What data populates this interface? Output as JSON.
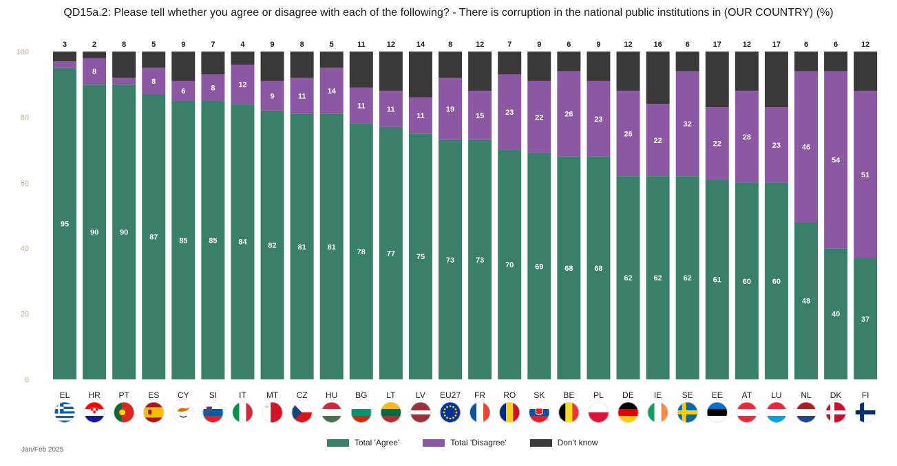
{
  "title": "QD15a.2: Please tell whether you agree or disagree with each of the following? - There is corruption in the national public institutions in (OUR COUNTRY) (%)",
  "source_note": "Jan/Feb 2025",
  "colors": {
    "agree": "#3a7f6a",
    "disagree": "#8c57a3",
    "dontknow": "#3b3839"
  },
  "legend": [
    {
      "label": "Total 'Agree'",
      "color": "#3a7f6a"
    },
    {
      "label": "Total 'Disagree'",
      "color": "#8c57a3"
    },
    {
      "label": "Don't know",
      "color": "#3b3839"
    }
  ],
  "chart_data": {
    "type": "bar",
    "stacked": true,
    "title": "QD15a.2: Please tell whether you agree or disagree with each of the following? - There is corruption in the national public institutions in (OUR COUNTRY) (%)",
    "ylim": [
      0,
      100
    ],
    "yticks": [
      0,
      20,
      40,
      60,
      80,
      100
    ],
    "grid": false,
    "legend_position": "bottom-center",
    "categories": [
      "EL",
      "HR",
      "PT",
      "ES",
      "CY",
      "SI",
      "IT",
      "MT",
      "CZ",
      "HU",
      "BG",
      "LT",
      "LV",
      "EU27",
      "FR",
      "RO",
      "SK",
      "BE",
      "PL",
      "DE",
      "IE",
      "SE",
      "EE",
      "AT",
      "LU",
      "NL",
      "DK",
      "FI"
    ],
    "series": [
      {
        "name": "Total 'Agree'",
        "values": [
          95,
          90,
          90,
          87,
          85,
          85,
          84,
          82,
          81,
          81,
          78,
          77,
          75,
          73,
          73,
          70,
          69,
          68,
          68,
          62,
          62,
          62,
          61,
          60,
          60,
          48,
          40,
          37
        ]
      },
      {
        "name": "Total 'Disagree'",
        "values": [
          2,
          8,
          2,
          8,
          6,
          8,
          12,
          9,
          11,
          14,
          11,
          11,
          11,
          19,
          15,
          23,
          22,
          26,
          23,
          26,
          22,
          32,
          22,
          28,
          23,
          46,
          54,
          51
        ]
      },
      {
        "name": "Don't know",
        "values": [
          3,
          2,
          8,
          5,
          9,
          7,
          4,
          9,
          8,
          5,
          11,
          12,
          14,
          8,
          12,
          7,
          9,
          6,
          9,
          12,
          16,
          6,
          17,
          12,
          17,
          6,
          6,
          12
        ]
      }
    ],
    "data_labels": {
      "agree": [
        "95",
        "90",
        "90",
        "87",
        "85",
        "85",
        "84",
        "82",
        "81",
        "81",
        "78",
        "77",
        "75",
        "73",
        "73",
        "70",
        "69",
        "68",
        "68",
        "62",
        "62",
        "62",
        "61",
        "60",
        "60",
        "48",
        "40",
        "37"
      ],
      "disagree": [
        "",
        "8",
        "",
        "8",
        "6",
        "8",
        "12",
        "9",
        "11",
        "14",
        "11",
        "11",
        "11",
        "19",
        "15",
        "23",
        "22",
        "26",
        "23",
        "26",
        "22",
        "32",
        "22",
        "28",
        "23",
        "46",
        "54",
        "51"
      ],
      "dontknow": [
        "3",
        "2",
        "8",
        "5",
        "9",
        "7",
        "4",
        "9",
        "8",
        "5",
        "11",
        "12",
        "14",
        "8",
        "12",
        "7",
        "9",
        "6",
        "9",
        "12",
        "16",
        "6",
        "17",
        "12",
        "17",
        "6",
        "6",
        "12"
      ]
    },
    "flags": [
      {
        "name": "greece-flag",
        "type": "greece"
      },
      {
        "name": "croatia-flag",
        "type": "h3",
        "c": [
          "#ff0000",
          "#ffffff",
          "#171796"
        ]
      },
      {
        "name": "portugal-flag",
        "type": "v2",
        "c": [
          "#046a38",
          "#da291c"
        ]
      },
      {
        "name": "spain-flag",
        "type": "spain"
      },
      {
        "name": "cyprus-flag",
        "type": "cyprus"
      },
      {
        "name": "slovenia-flag",
        "type": "h3",
        "c": [
          "#ffffff",
          "#005da4",
          "#ed1c24"
        ]
      },
      {
        "name": "italy-flag",
        "type": "v3",
        "c": [
          "#009246",
          "#ffffff",
          "#ce2b37"
        ]
      },
      {
        "name": "malta-flag",
        "type": "v2",
        "c": [
          "#ffffff",
          "#cf142b"
        ]
      },
      {
        "name": "czechia-flag",
        "type": "czech"
      },
      {
        "name": "hungary-flag",
        "type": "h3",
        "c": [
          "#ce2939",
          "#ffffff",
          "#477050"
        ]
      },
      {
        "name": "bulgaria-flag",
        "type": "h3",
        "c": [
          "#ffffff",
          "#00966e",
          "#d62612"
        ]
      },
      {
        "name": "lithuania-flag",
        "type": "h3",
        "c": [
          "#fdb913",
          "#006a44",
          "#c1272d"
        ]
      },
      {
        "name": "latvia-flag",
        "type": "latvia"
      },
      {
        "name": "eu-flag",
        "type": "eu"
      },
      {
        "name": "france-flag",
        "type": "v3",
        "c": [
          "#0055a4",
          "#ffffff",
          "#ef4135"
        ]
      },
      {
        "name": "romania-flag",
        "type": "v3",
        "c": [
          "#002b7f",
          "#fcd116",
          "#ce1126"
        ]
      },
      {
        "name": "slovakia-flag",
        "type": "h3",
        "c": [
          "#ffffff",
          "#0b4ea2",
          "#ee1c25"
        ]
      },
      {
        "name": "belgium-flag",
        "type": "v3",
        "c": [
          "#000000",
          "#fdda24",
          "#ef3340"
        ]
      },
      {
        "name": "poland-flag",
        "type": "h2",
        "c": [
          "#ffffff",
          "#dc143c"
        ]
      },
      {
        "name": "germany-flag",
        "type": "h3",
        "c": [
          "#000000",
          "#dd0000",
          "#ffce00"
        ]
      },
      {
        "name": "ireland-flag",
        "type": "v3",
        "c": [
          "#169b62",
          "#ffffff",
          "#ff883e"
        ]
      },
      {
        "name": "sweden-flag",
        "type": "nordic",
        "c": [
          "#006aa7",
          "#fecc00"
        ]
      },
      {
        "name": "estonia-flag",
        "type": "h3",
        "c": [
          "#0072ce",
          "#000000",
          "#ffffff"
        ]
      },
      {
        "name": "austria-flag",
        "type": "h3",
        "c": [
          "#ed2939",
          "#ffffff",
          "#ed2939"
        ]
      },
      {
        "name": "luxembourg-flag",
        "type": "h3",
        "c": [
          "#ed2939",
          "#ffffff",
          "#00a1de"
        ]
      },
      {
        "name": "netherlands-flag",
        "type": "h3",
        "c": [
          "#ae1c28",
          "#ffffff",
          "#21468b"
        ]
      },
      {
        "name": "denmark-flag",
        "type": "nordic",
        "c": [
          "#c8102e",
          "#ffffff"
        ]
      },
      {
        "name": "finland-flag",
        "type": "nordic",
        "c": [
          "#ffffff",
          "#002f6c"
        ]
      }
    ]
  }
}
